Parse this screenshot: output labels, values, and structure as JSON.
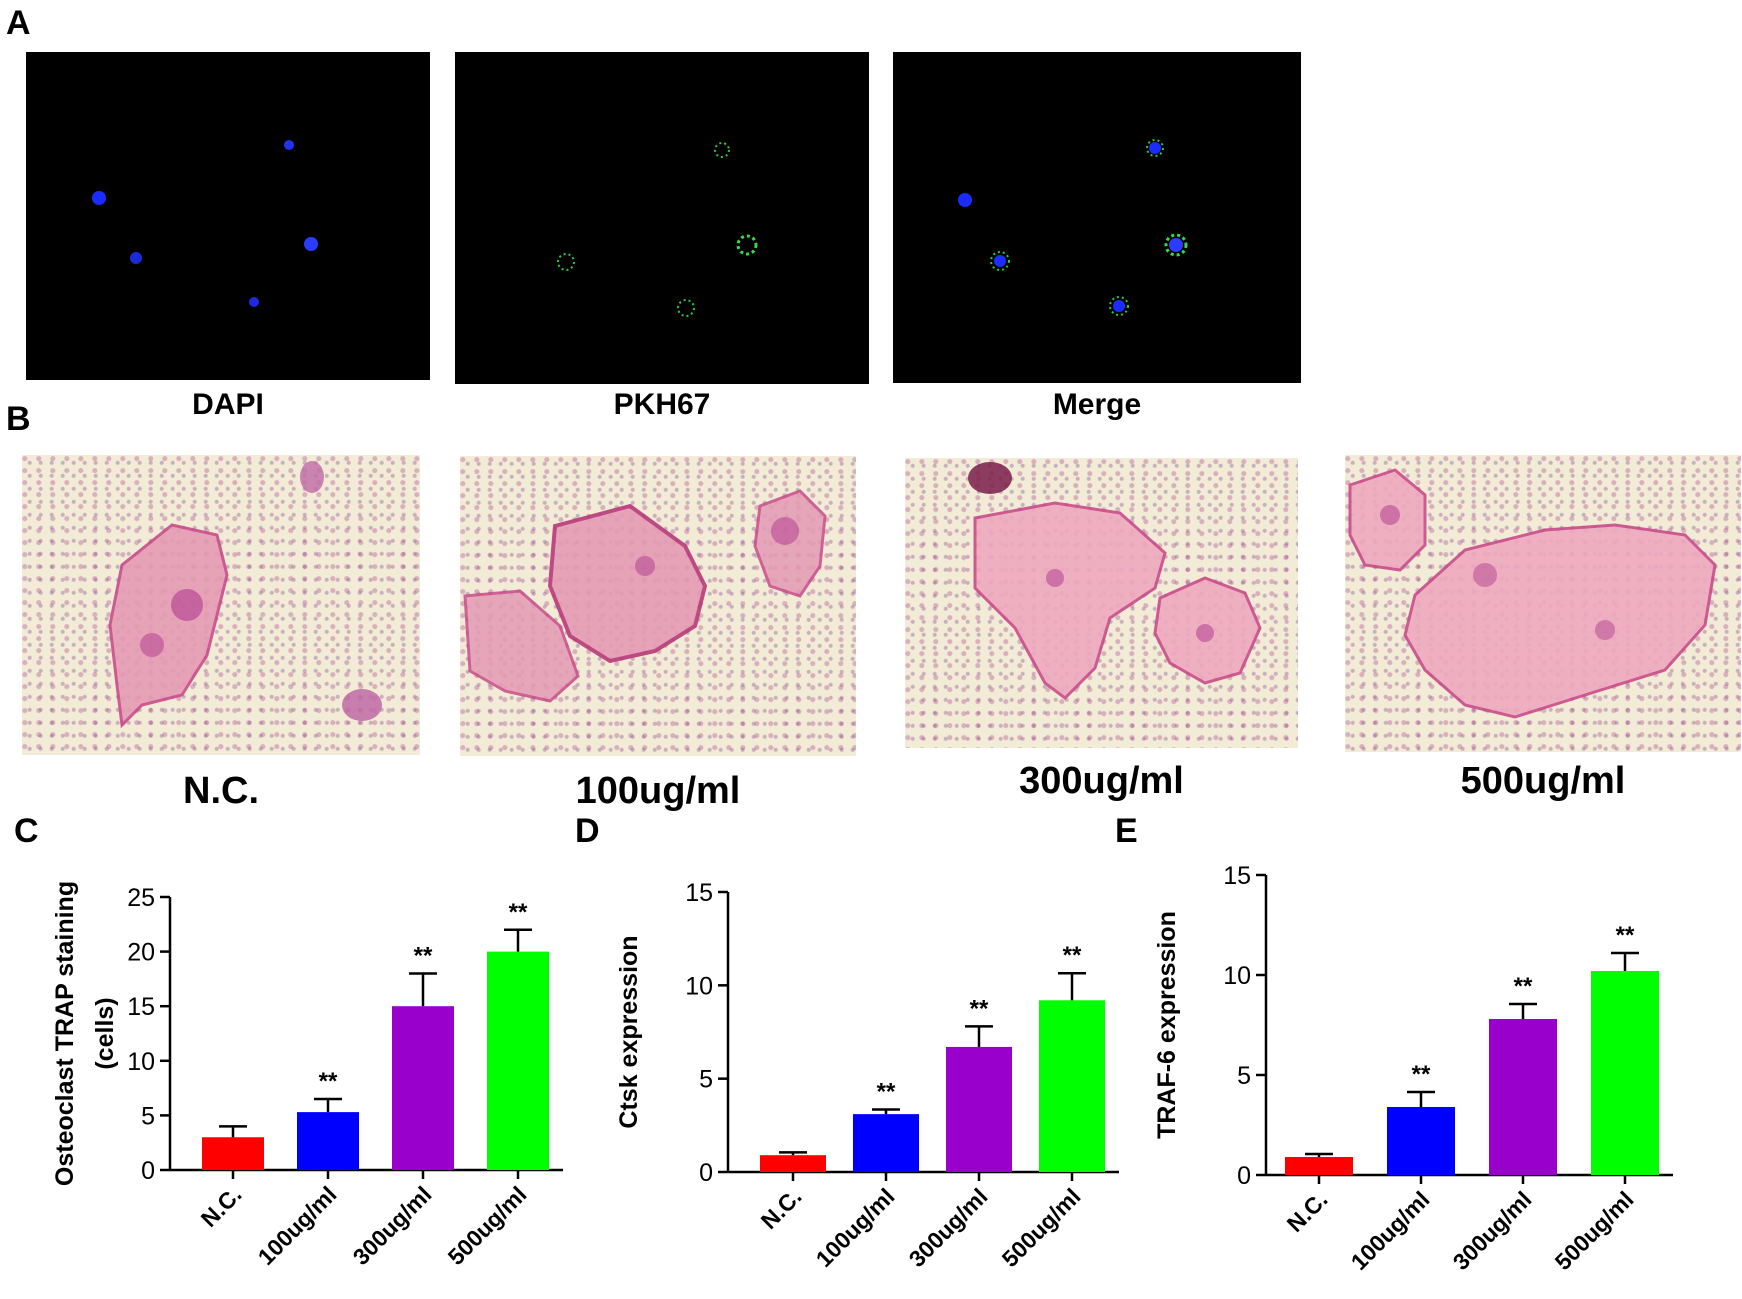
{
  "panel_a": {
    "letter": "A",
    "images": [
      {
        "label": "DAPI"
      },
      {
        "label": "PKH67"
      },
      {
        "label": "Merge"
      }
    ]
  },
  "panel_b": {
    "letter": "B",
    "images": [
      {
        "label": "N.C."
      },
      {
        "label": "100ug/ml"
      },
      {
        "label": "300ug/ml"
      },
      {
        "label": "500ug/ml"
      }
    ]
  },
  "chart_data": [
    {
      "panel": "C",
      "type": "bar",
      "categories": [
        "N.C.",
        "100ug/ml",
        "300ug/ml",
        "500ug/ml"
      ],
      "values": [
        3,
        5.3,
        15,
        20
      ],
      "errors": [
        1,
        1.2,
        3,
        2
      ],
      "significance": [
        "",
        "**",
        "**",
        "**"
      ],
      "colors": [
        "#ff0000",
        "#0000ff",
        "#9900cc",
        "#00ff00"
      ],
      "ylabel_lines": [
        "Osteoclast TRAP staining",
        "(cells)"
      ],
      "ylim": [
        0,
        25
      ],
      "yticks": [
        0,
        5,
        10,
        15,
        20,
        25
      ]
    },
    {
      "panel": "D",
      "type": "bar",
      "categories": [
        "N.C.",
        "100ug/ml",
        "300ug/ml",
        "500ug/ml"
      ],
      "values": [
        0.9,
        3.1,
        6.7,
        9.2
      ],
      "errors": [
        0.15,
        0.25,
        1.1,
        1.45
      ],
      "significance": [
        "",
        "**",
        "**",
        "**"
      ],
      "colors": [
        "#ff0000",
        "#0000ff",
        "#9900cc",
        "#00ff00"
      ],
      "ylabel_lines": [
        "Ctsk expression"
      ],
      "ylim": [
        0,
        15
      ],
      "yticks": [
        0,
        5,
        10,
        15
      ]
    },
    {
      "panel": "E",
      "type": "bar",
      "categories": [
        "N.C.",
        "100ug/ml",
        "300ug/ml",
        "500ug/ml"
      ],
      "values": [
        0.9,
        3.4,
        7.8,
        10.2
      ],
      "errors": [
        0.15,
        0.75,
        0.75,
        0.9
      ],
      "significance": [
        "",
        "**",
        "**",
        "**"
      ],
      "colors": [
        "#ff0000",
        "#0000ff",
        "#9900cc",
        "#00ff00"
      ],
      "ylabel_lines": [
        "TRAF-6 expression"
      ],
      "ylim": [
        0,
        15
      ],
      "yticks": [
        0,
        5,
        10,
        15
      ]
    }
  ]
}
